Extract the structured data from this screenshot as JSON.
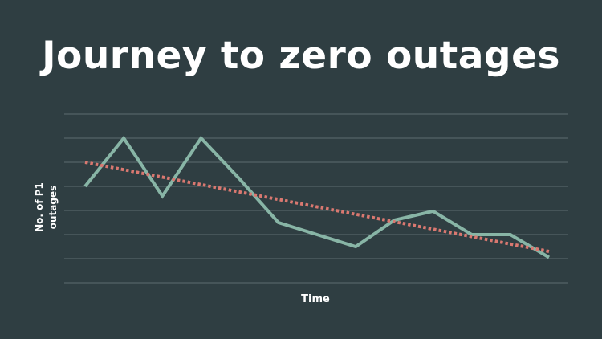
{
  "slide": {
    "title": "Journey to zero outages"
  },
  "colors": {
    "background": "#2f3e42",
    "gridline": "#5d6c70",
    "series": "#88b5a6",
    "trendline": "#d97870",
    "text": "#ffffff"
  },
  "chart_data": {
    "type": "line",
    "title": "",
    "xlabel": "Time",
    "ylabel_lines": [
      "No. of  P1",
      "outages"
    ],
    "x": [
      1,
      2,
      3,
      4,
      5,
      6,
      7,
      8,
      9,
      10,
      11,
      12,
      13
    ],
    "ylim": [
      0,
      7
    ],
    "y_gridlines": [
      0,
      1,
      2,
      3,
      4,
      5,
      6,
      7
    ],
    "grid": true,
    "series": [
      {
        "values": [
          4.0,
          6.0,
          3.6,
          6.0,
          4.3,
          2.5,
          2.0,
          1.5,
          2.6,
          2.97,
          2.0,
          2.0,
          1.05
        ],
        "style": "solid"
      },
      {
        "values": [
          5.0,
          1.3
        ],
        "x": [
          1,
          13
        ],
        "style": "dotted",
        "kind": "trendline"
      }
    ]
  }
}
